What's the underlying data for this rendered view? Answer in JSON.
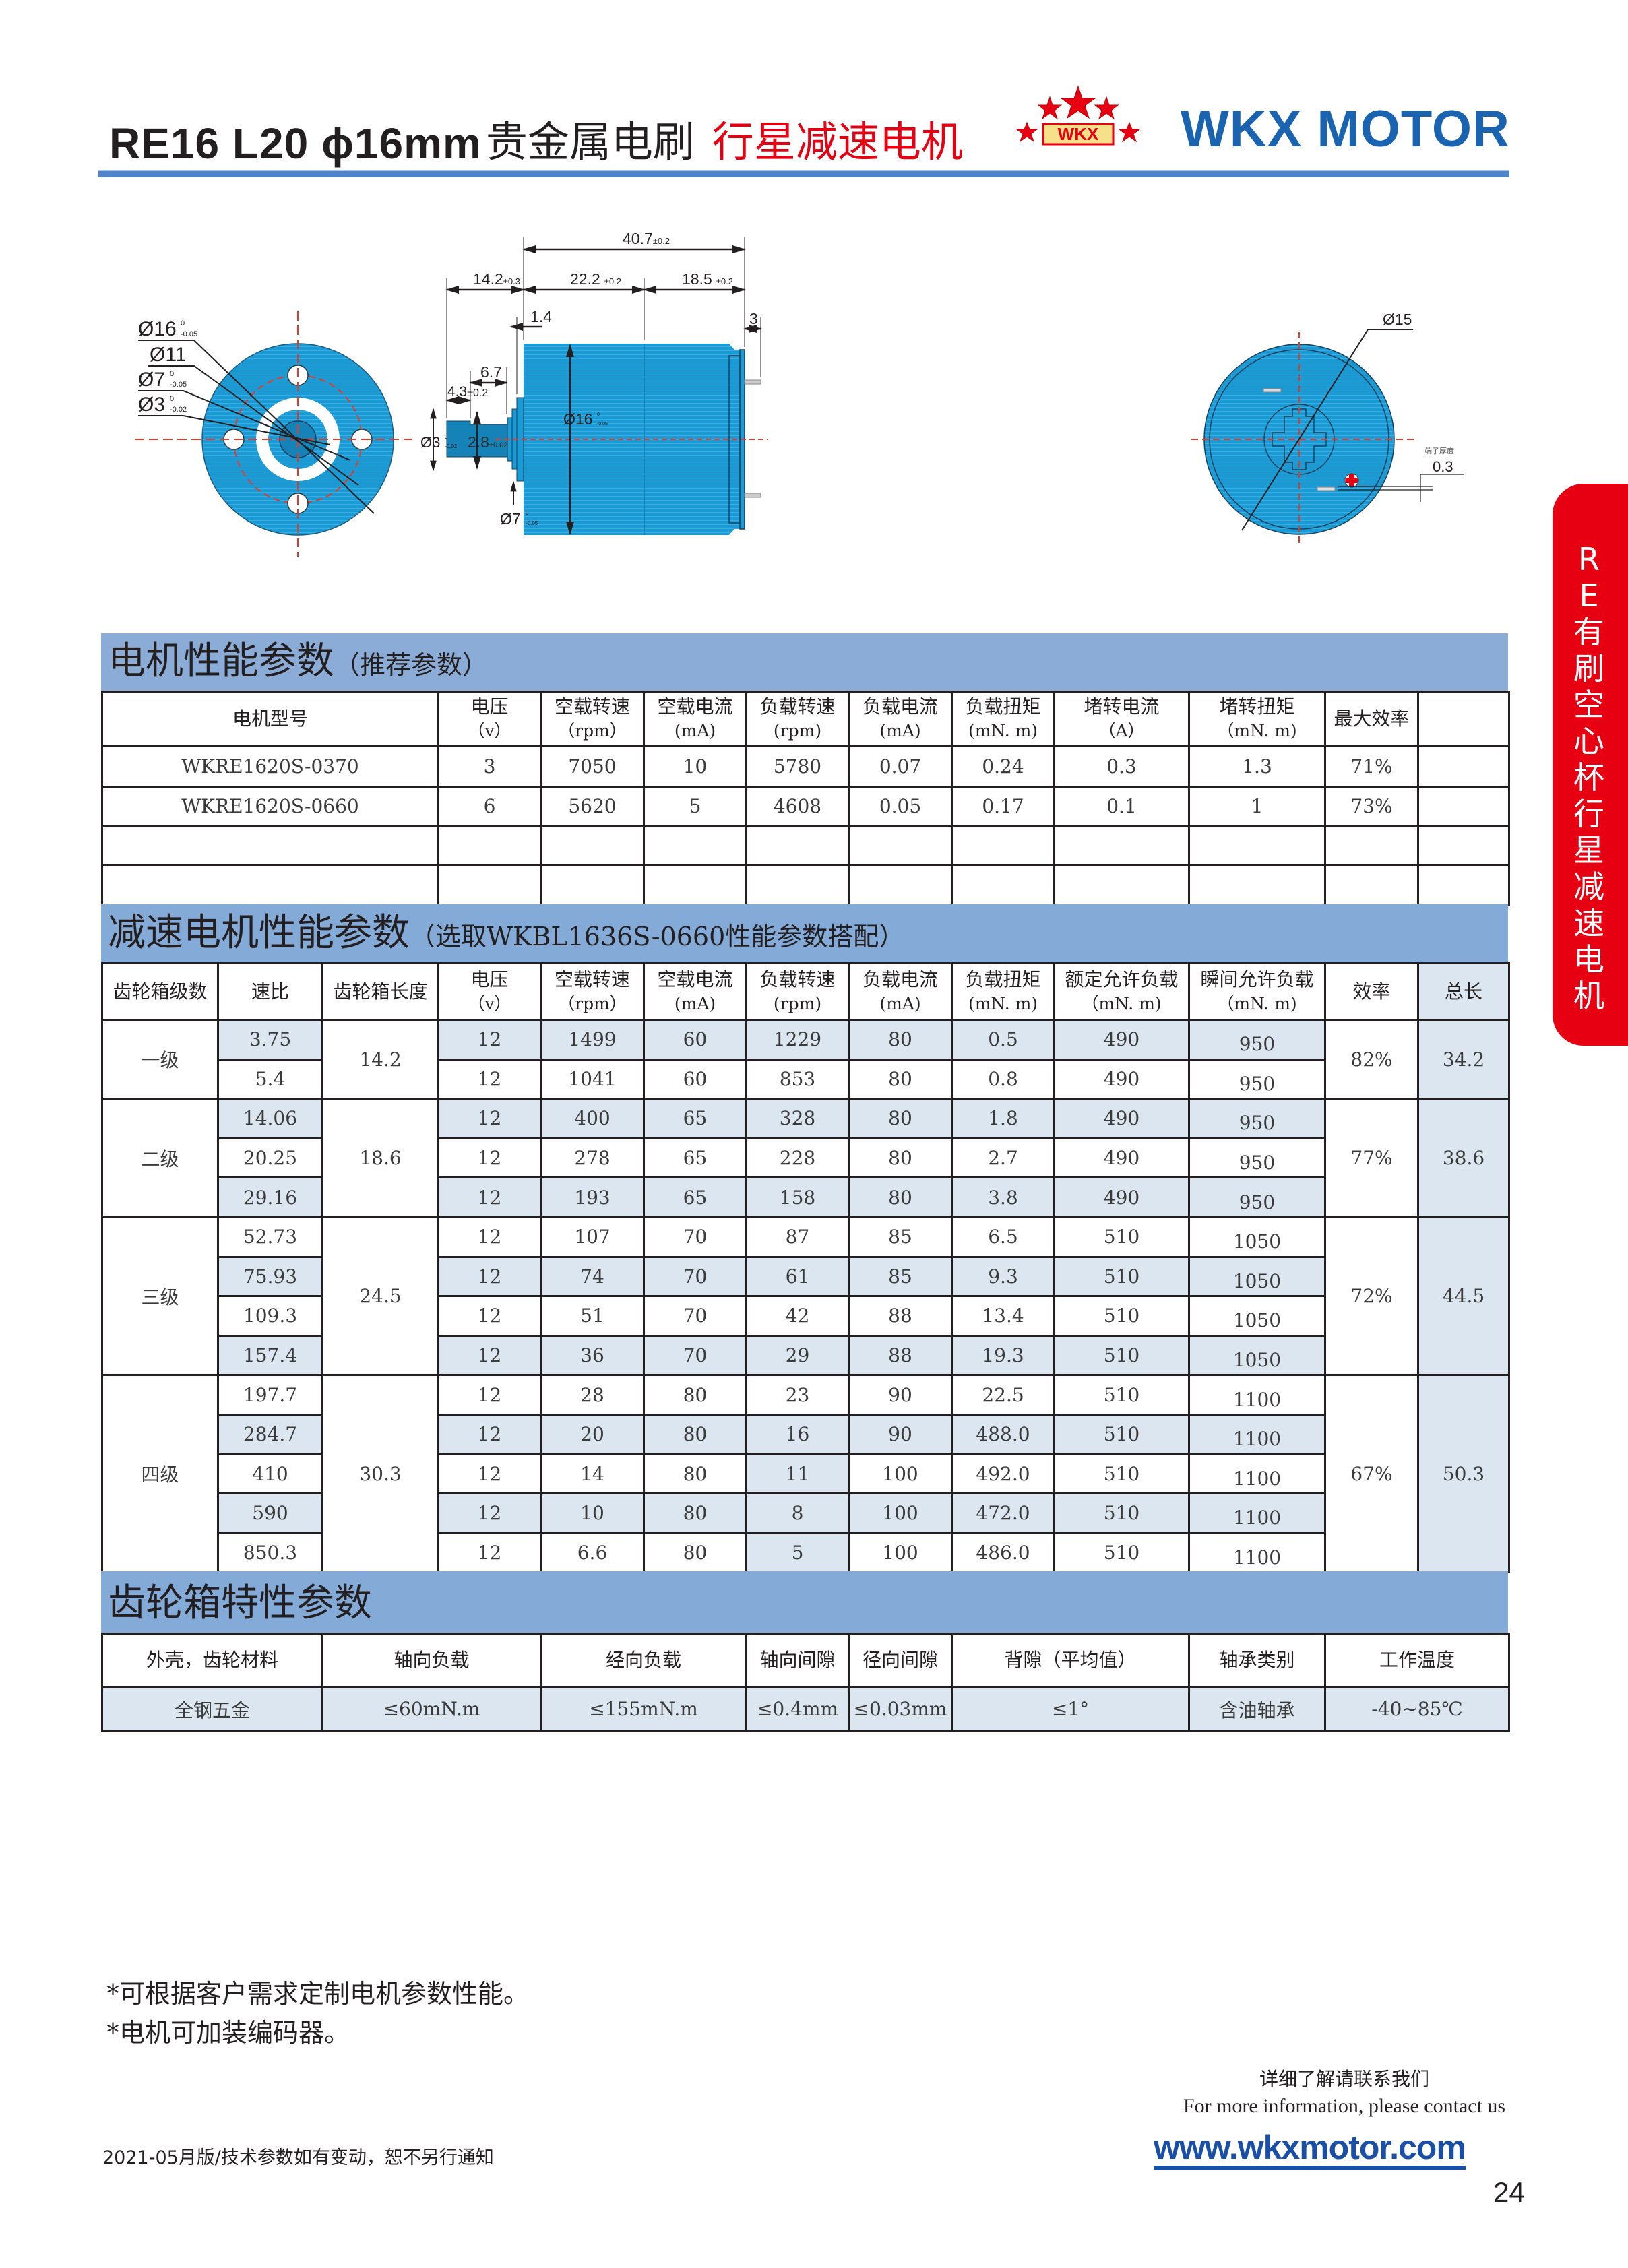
{
  "header": {
    "model": "RE16 L20 ϕ16mm",
    "title_black": "贵金属电刷",
    "title_red": "行星减速电机",
    "logo_badge": "WKX",
    "brand": "WKX MOTOR",
    "colors": {
      "brand_blue": "#1a63b0",
      "accent_red": "#e60012",
      "band_blue": "#8aacd6",
      "cell_shade": "#dce6f0",
      "motor_blue": "#1a9bd5"
    }
  },
  "drawing": {
    "front_view": {
      "d16": "Ø16",
      "d16_tol_upper": "0",
      "d16_tol_lower": "-0.05",
      "d11": "Ø11",
      "d7": "Ø7",
      "d7_tol_upper": "0",
      "d7_tol_lower": "-0.05",
      "d3": "Ø3",
      "d3_tol_upper": "0",
      "d3_tol_lower": "-0.02"
    },
    "side_view": {
      "total": "40.7",
      "total_tol": "±0.2",
      "gearbox": "14.2",
      "gearbox_tol": "±0.3",
      "motor": "22.2",
      "motor_tol": "±0.2",
      "rear": "18.5",
      "rear_tol": "±0.2",
      "flange": "1.4",
      "terminal": "3",
      "shaft_flat": "6.7",
      "shaft_tip": "4.3",
      "shaft_tip_tol": "±0.2",
      "shaft_d": "Ø3",
      "shaft_d_tol_upper": "0",
      "shaft_d_tol_lower": "-0.02",
      "flat_h": "2.8",
      "flat_h_tol": "±0.02",
      "body_d": "Ø16",
      "body_d_tol_upper": "0",
      "body_d_tol_lower": "-0.05",
      "boss_d": "Ø7",
      "boss_d_tol_upper": "0",
      "boss_d_tol_lower": "-0.05"
    },
    "rear_view": {
      "d15": "Ø15",
      "terminal_thickness_label": "端子厚度",
      "terminal_thickness": "0.3"
    }
  },
  "motor_table": {
    "title": "电机性能参数",
    "subtitle": "（推荐参数）",
    "columns": [
      {
        "label": "电机型号",
        "unit": ""
      },
      {
        "label": "电压",
        "unit": "（v）"
      },
      {
        "label": "空载转速",
        "unit": "（rpm）"
      },
      {
        "label": "空载电流",
        "unit": "(mA)"
      },
      {
        "label": "负载转速",
        "unit": "(rpm)"
      },
      {
        "label": "负载电流",
        "unit": "(mA)"
      },
      {
        "label": "负载扭矩",
        "unit": "(mN. m)"
      },
      {
        "label": "堵转电流",
        "unit": "（A）"
      },
      {
        "label": "堵转扭矩",
        "unit": "（mN. m)"
      },
      {
        "label": "最大效率",
        "unit": ""
      },
      {
        "label": "",
        "unit": ""
      }
    ],
    "rows": [
      [
        "WKRE1620S-0370",
        "3",
        "7050",
        "10",
        "5780",
        "0.07",
        "0.24",
        "0.3",
        "1.3",
        "71%",
        ""
      ],
      [
        "WKRE1620S-0660",
        "6",
        "5620",
        "5",
        "4608",
        "0.05",
        "0.17",
        "0.1",
        "1",
        "73%",
        ""
      ]
    ]
  },
  "gear_table": {
    "title": "减速电机性能参数",
    "subtitle": "（选取WKBL1636S-0660性能参数搭配）",
    "columns": [
      {
        "label": "齿轮箱级数",
        "unit": ""
      },
      {
        "label": "速比",
        "unit": ""
      },
      {
        "label": "齿轮箱长度",
        "unit": ""
      },
      {
        "label": "电压",
        "unit": "（v）"
      },
      {
        "label": "空载转速",
        "unit": "（rpm）"
      },
      {
        "label": "空载电流",
        "unit": "(mA)"
      },
      {
        "label": "负载转速",
        "unit": "(rpm)"
      },
      {
        "label": "负载电流",
        "unit": "(mA)"
      },
      {
        "label": "负载扭矩",
        "unit": "(mN. m)"
      },
      {
        "label": "额定允许负载",
        "unit": "（mN. m)"
      },
      {
        "label": "瞬间允许负载",
        "unit": "（mN. m)"
      },
      {
        "label": "效率",
        "unit": ""
      },
      {
        "label": "总长",
        "unit": ""
      }
    ],
    "groups": [
      {
        "stage": "一级",
        "gearbox_length": "14.2",
        "efficiency": "82%",
        "total_length": "34.2",
        "rows": [
          [
            "3.75",
            "12",
            "1499",
            "60",
            "1229",
            "80",
            "0.5",
            "490",
            "950"
          ],
          [
            "5.4",
            "12",
            "1041",
            "60",
            "853",
            "80",
            "0.8",
            "490",
            "950"
          ]
        ]
      },
      {
        "stage": "二级",
        "gearbox_length": "18.6",
        "efficiency": "77%",
        "total_length": "38.6",
        "rows": [
          [
            "14.06",
            "12",
            "400",
            "65",
            "328",
            "80",
            "1.8",
            "490",
            "950"
          ],
          [
            "20.25",
            "12",
            "278",
            "65",
            "228",
            "80",
            "2.7",
            "490",
            "950"
          ],
          [
            "29.16",
            "12",
            "193",
            "65",
            "158",
            "80",
            "3.8",
            "490",
            "950"
          ]
        ]
      },
      {
        "stage": "三级",
        "gearbox_length": "24.5",
        "efficiency": "72%",
        "total_length": "44.5",
        "rows": [
          [
            "52.73",
            "12",
            "107",
            "70",
            "87",
            "85",
            "6.5",
            "510",
            "1050"
          ],
          [
            "75.93",
            "12",
            "74",
            "70",
            "61",
            "85",
            "9.3",
            "510",
            "1050"
          ],
          [
            "109.3",
            "12",
            "51",
            "70",
            "42",
            "88",
            "13.4",
            "510",
            "1050"
          ],
          [
            "157.4",
            "12",
            "36",
            "70",
            "29",
            "88",
            "19.3",
            "510",
            "1050"
          ]
        ]
      },
      {
        "stage": "四级",
        "gearbox_length": "30.3",
        "efficiency": "67%",
        "total_length": "50.3",
        "rows": [
          [
            "197.7",
            "12",
            "28",
            "80",
            "23",
            "90",
            "22.5",
            "510",
            "1100"
          ],
          [
            "284.7",
            "12",
            "20",
            "80",
            "16",
            "90",
            "488.0",
            "510",
            "1100"
          ],
          [
            "410",
            "12",
            "14",
            "80",
            "11",
            "100",
            "492.0",
            "510",
            "1100"
          ],
          [
            "590",
            "12",
            "10",
            "80",
            "8",
            "100",
            "472.0",
            "510",
            "1100"
          ],
          [
            "850.3",
            "12",
            "6.6",
            "80",
            "5",
            "100",
            "486.0",
            "510",
            "1100"
          ]
        ]
      }
    ]
  },
  "gearbox_table": {
    "title": "齿轮箱特性参数",
    "columns": [
      "外壳，齿轮材料",
      "轴向负载",
      "经向负载",
      "轴向间隙",
      "径向间隙",
      "背隙（平均值）",
      "轴承类别",
      "工作温度"
    ],
    "values": [
      "全钢五金",
      "≤60mN.m",
      "≤155mN.m",
      "≤0.4mm",
      "≤0.03mm",
      "≤1°",
      "含油轴承",
      "-40~85℃"
    ]
  },
  "notes": [
    "*可根据客户需求定制电机参数性能。",
    "*电机可加装编码器。"
  ],
  "contact": {
    "cn": "详细了解请联系我们",
    "en": "For more information, please contact us",
    "website": "www.wkxmotor.com"
  },
  "footer": {
    "notice": "2021-05月版/技术参数如有变动，恕不另行通知",
    "page_number": "24"
  },
  "side_tab": {
    "label": "RE有刷空心杯行星减速电机"
  }
}
